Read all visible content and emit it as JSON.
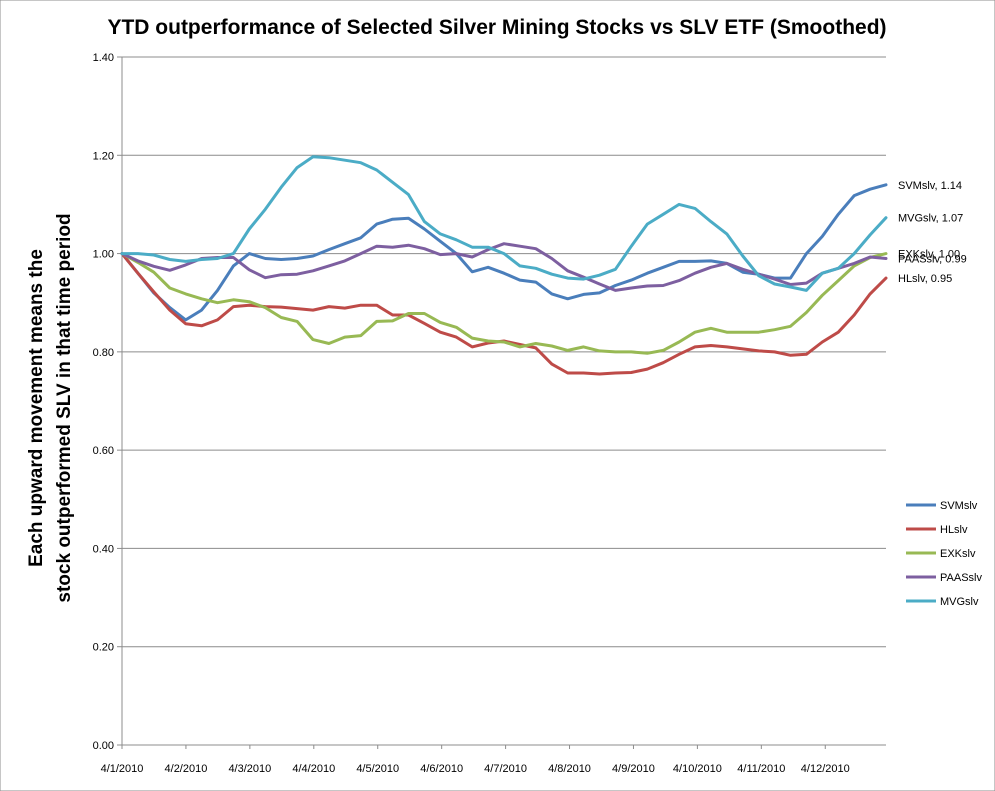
{
  "chart_data": {
    "type": "line",
    "title": "YTD outperformance of Selected Silver Mining Stocks vs SLV ETF (Smoothed)",
    "ylabel_lines": [
      "Each upward movement means the",
      "stock outperformed SLV in that time period"
    ],
    "xlabel": "",
    "ylim": [
      0,
      1.4
    ],
    "yticks": [
      "0.00",
      "0.20",
      "0.40",
      "0.60",
      "0.80",
      "1.00",
      "1.20",
      "1.40"
    ],
    "xticks": [
      "4/1/2010",
      "4/2/2010",
      "4/3/2010",
      "4/4/2010",
      "4/5/2010",
      "4/6/2010",
      "4/7/2010",
      "4/8/2010",
      "4/9/2010",
      "4/10/2010",
      "4/11/2010",
      "4/12/2010"
    ],
    "grid": true,
    "legend_position": "right",
    "series": [
      {
        "name": "SVMslv",
        "color": "#4a7ebb",
        "end_label": "SVMslv, 1.14",
        "values": [
          1.0,
          0.96,
          0.92,
          0.89,
          0.865,
          0.885,
          0.925,
          0.975,
          1.0,
          0.99,
          0.988,
          0.99,
          0.995,
          1.008,
          1.02,
          1.032,
          1.06,
          1.07,
          1.072,
          1.05,
          1.025,
          1.0,
          0.963,
          0.972,
          0.96,
          0.946,
          0.942,
          0.918,
          0.908,
          0.917,
          0.92,
          0.935,
          0.946,
          0.96,
          0.972,
          0.984,
          0.984,
          0.985,
          0.98,
          0.962,
          0.958,
          0.95,
          0.95,
          1.0,
          1.035,
          1.08,
          1.118,
          1.131,
          1.14
        ]
      },
      {
        "name": "HLslv",
        "color": "#be4b48",
        "end_label": "HLslv, 0.95",
        "values": [
          1.0,
          0.96,
          0.922,
          0.885,
          0.857,
          0.853,
          0.865,
          0.892,
          0.895,
          0.892,
          0.891,
          0.888,
          0.885,
          0.892,
          0.889,
          0.895,
          0.895,
          0.875,
          0.875,
          0.858,
          0.84,
          0.83,
          0.81,
          0.818,
          0.822,
          0.815,
          0.808,
          0.775,
          0.757,
          0.757,
          0.755,
          0.757,
          0.758,
          0.765,
          0.778,
          0.795,
          0.81,
          0.813,
          0.81,
          0.806,
          0.802,
          0.8,
          0.793,
          0.795,
          0.82,
          0.84,
          0.875,
          0.918,
          0.95
        ]
      },
      {
        "name": "EXKslv",
        "color": "#98b954",
        "end_label": "EXKslv, 1.00",
        "values": [
          1.0,
          0.982,
          0.962,
          0.93,
          0.918,
          0.908,
          0.9,
          0.906,
          0.902,
          0.89,
          0.87,
          0.862,
          0.825,
          0.817,
          0.83,
          0.833,
          0.862,
          0.863,
          0.878,
          0.878,
          0.86,
          0.85,
          0.828,
          0.822,
          0.82,
          0.81,
          0.817,
          0.812,
          0.803,
          0.81,
          0.802,
          0.8,
          0.8,
          0.797,
          0.803,
          0.82,
          0.84,
          0.848,
          0.84,
          0.84,
          0.84,
          0.845,
          0.852,
          0.88,
          0.915,
          0.945,
          0.975,
          0.992,
          1.0
        ]
      },
      {
        "name": "PAASslv",
        "color": "#7d5fa0",
        "end_label": "PAASslv, 0.99",
        "values": [
          1.0,
          0.985,
          0.974,
          0.966,
          0.977,
          0.99,
          0.992,
          0.992,
          0.967,
          0.951,
          0.957,
          0.958,
          0.965,
          0.975,
          0.985,
          1.0,
          1.015,
          1.013,
          1.017,
          1.01,
          0.998,
          1.0,
          0.993,
          1.008,
          1.02,
          1.015,
          1.01,
          0.99,
          0.965,
          0.952,
          0.938,
          0.925,
          0.93,
          0.934,
          0.935,
          0.945,
          0.96,
          0.972,
          0.98,
          0.968,
          0.958,
          0.948,
          0.937,
          0.94,
          0.96,
          0.97,
          0.98,
          0.993,
          0.99
        ]
      },
      {
        "name": "MVGslv",
        "color": "#4bacc6",
        "end_label": "MVGslv, 1.07",
        "values": [
          1.0,
          1.0,
          0.997,
          0.988,
          0.984,
          0.988,
          0.99,
          1.0,
          1.05,
          1.09,
          1.135,
          1.175,
          1.197,
          1.195,
          1.19,
          1.185,
          1.17,
          1.145,
          1.12,
          1.065,
          1.04,
          1.028,
          1.013,
          1.013,
          1.0,
          0.975,
          0.97,
          0.958,
          0.95,
          0.948,
          0.956,
          0.968,
          1.015,
          1.06,
          1.08,
          1.1,
          1.092,
          1.065,
          1.04,
          0.995,
          0.955,
          0.938,
          0.932,
          0.925,
          0.96,
          0.97,
          1.0,
          1.038,
          1.073
        ]
      }
    ]
  }
}
